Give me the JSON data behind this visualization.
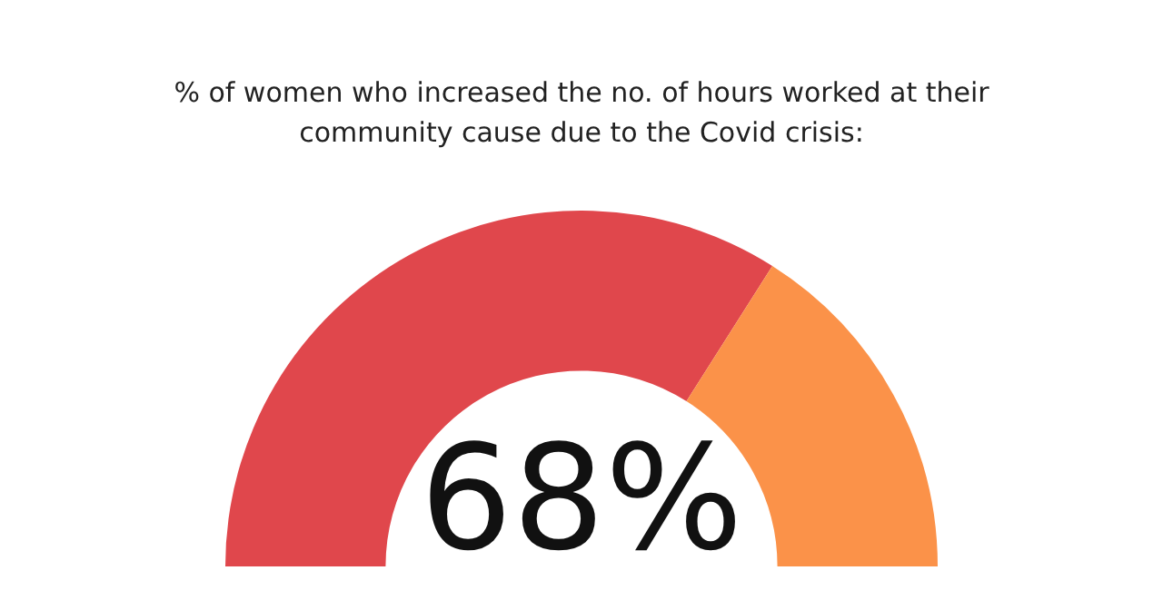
{
  "chart_data": {
    "type": "donut",
    "title": "% of women who increased the no. of hours worked at their community cause due to the Covid crisis:",
    "categories": [
      null,
      null
    ],
    "values": [
      68,
      32
    ],
    "colors": [
      "#e0474c",
      "#fb9249"
    ],
    "annotations": [
      "68%"
    ]
  }
}
